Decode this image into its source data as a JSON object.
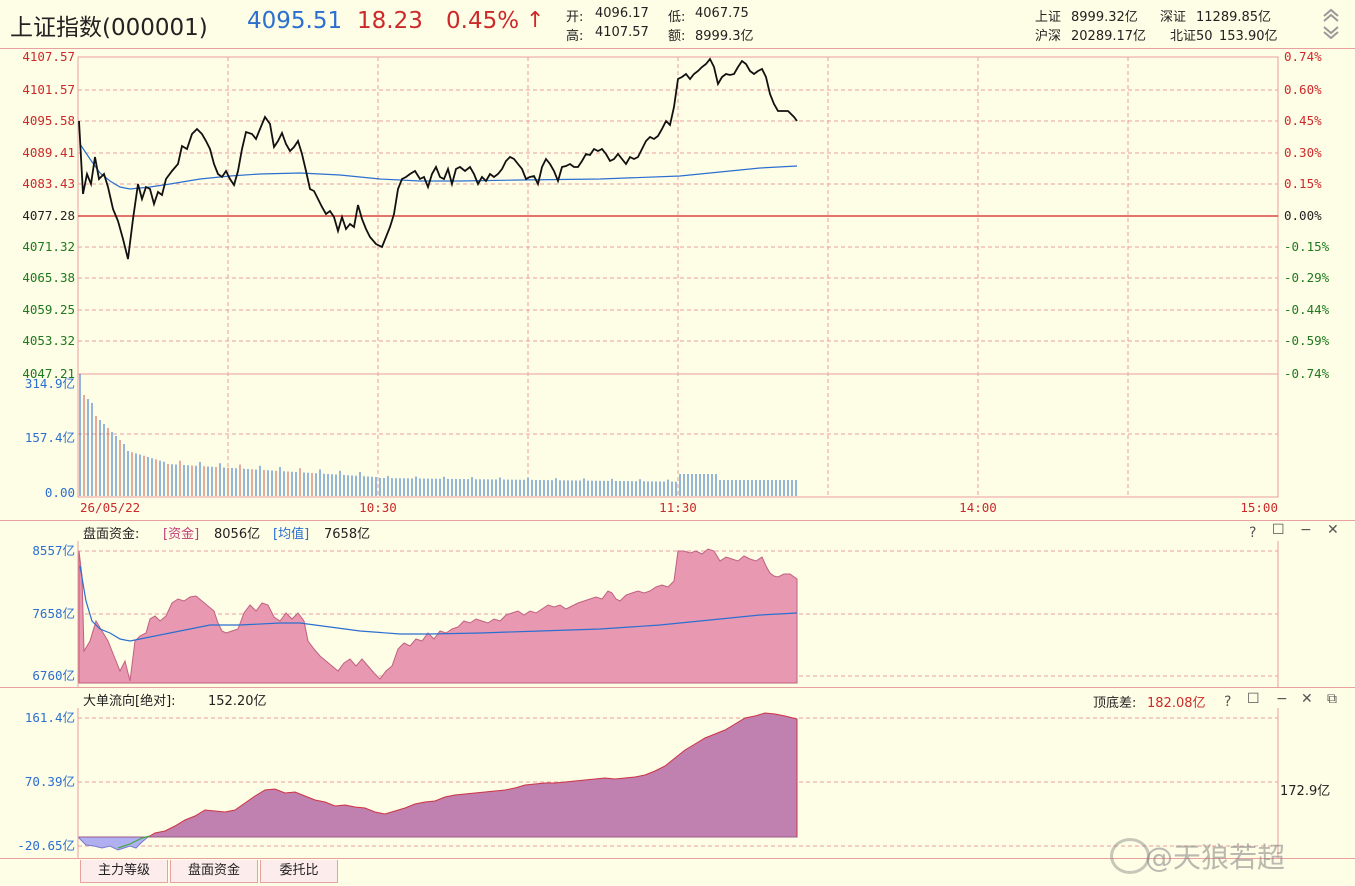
{
  "header": {
    "name": "上证指数(000001)",
    "price": "4095.51",
    "change": "18.23",
    "pct": "0.45%",
    "arrow": "↑",
    "open_label": "开:",
    "open": "4096.17",
    "low_label": "低:",
    "low": "4067.75",
    "high_label": "高:",
    "high": "4107.57",
    "amount_label": "额:",
    "amount": "8999.3亿",
    "sh_label": "上证",
    "sh": "8999.32亿",
    "sz_label": "深证",
    "sz": "11289.85亿",
    "hs_label": "沪深",
    "hs": "20289.17亿",
    "bz_label": "北证50",
    "bz": "153.90亿"
  },
  "price_chart": {
    "left_ticks": [
      "4107.57",
      "4101.57",
      "4095.58",
      "4089.41",
      "4083.43",
      "4077.28",
      "4071.32",
      "4065.38",
      "4059.25",
      "4053.32",
      "4047.21"
    ],
    "right_ticks": [
      "0.74%",
      "0.60%",
      "0.45%",
      "0.30%",
      "0.15%",
      "0.00%",
      "-0.15%",
      "-0.29%",
      "-0.44%",
      "-0.59%",
      "-0.74%"
    ],
    "vol_ticks": [
      "314.9亿",
      "157.4亿",
      "0.00"
    ],
    "time_ticks": [
      "26/05/22",
      "10:30",
      "11:30",
      "14:00",
      "15:00"
    ]
  },
  "fund_panel": {
    "title": "盘面资金:",
    "fund_tag": "[资金]",
    "fund_value": "8056亿",
    "avg_tag": "[均值]",
    "avg_value": "7658亿",
    "ticks": [
      "8557亿",
      "7658亿",
      "6760亿"
    ]
  },
  "big_panel": {
    "title": "大单流向[绝对]:",
    "value": "152.20亿",
    "diff_label": "顶底差:",
    "diff_value": "182.08亿",
    "ticks": [
      "161.4亿",
      "70.39亿",
      "-20.65亿"
    ],
    "right_value": "172.9亿"
  },
  "tabs": [
    "主力等级",
    "盘面资金",
    "委托比"
  ],
  "watermark": "@天狼若超",
  "colors": {
    "up": "#cc2a2a",
    "down": "#1f7a1f",
    "blue": "#2b6fd0",
    "grid": "#e9a0a0"
  }
}
